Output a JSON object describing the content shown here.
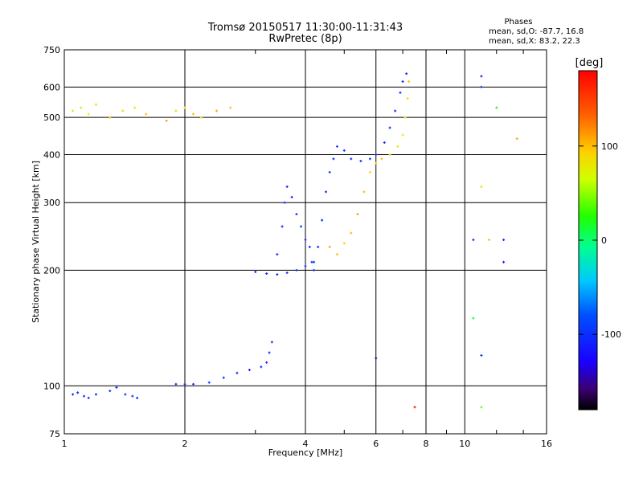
{
  "chart_data": {
    "type": "scatter",
    "title": "Tromsø 20150517 11:30:00-11:31:43",
    "subtitle": "RwPretec (8p)",
    "stats": {
      "heading": "Phases",
      "line1": "mean, sd,O: -87.7, 16.8",
      "line2": "mean, sd,X: 83.2, 22.3"
    },
    "xlabel": "Frequency [MHz]",
    "ylabel": "Stationary phase Virtual Height [km]",
    "xscale": "log",
    "yscale": "log",
    "xlim": [
      1,
      16
    ],
    "ylim": [
      75,
      750
    ],
    "xticks": [
      1,
      2,
      4,
      6,
      8,
      10,
      16
    ],
    "xtick_labels": [
      "1",
      "2",
      "4",
      "6",
      "8",
      "10",
      "16"
    ],
    "yticks": [
      75,
      100,
      200,
      300,
      400,
      500,
      600,
      750
    ],
    "ytick_labels": [
      "75",
      "100",
      "200",
      "300",
      "400",
      "500",
      "600",
      "750"
    ],
    "grid": true,
    "colorbar": {
      "label": "[deg]",
      "range": [
        -180,
        180
      ],
      "ticks": [
        -100,
        0,
        100
      ],
      "tick_labels": [
        "-100",
        "0",
        "100"
      ]
    },
    "series": [
      {
        "points": [
          [
            1.05,
            95,
            -100
          ],
          [
            1.08,
            96,
            -110
          ],
          [
            1.12,
            94,
            -95
          ],
          [
            1.15,
            93,
            -100
          ],
          [
            1.2,
            95,
            -105
          ],
          [
            1.3,
            97,
            -100
          ],
          [
            1.35,
            99,
            -110
          ],
          [
            1.42,
            95,
            -100
          ],
          [
            1.48,
            94,
            -90
          ],
          [
            1.52,
            93,
            -105
          ],
          [
            1.9,
            101,
            -100
          ],
          [
            2.0,
            101,
            -105
          ],
          [
            2.1,
            101,
            -100
          ],
          [
            2.3,
            102,
            -95
          ],
          [
            2.5,
            105,
            -100
          ],
          [
            2.7,
            108,
            -100
          ],
          [
            2.9,
            110,
            -110
          ],
          [
            3.1,
            112,
            -100
          ],
          [
            3.2,
            115,
            -105
          ],
          [
            3.25,
            122,
            -100
          ],
          [
            3.3,
            130,
            -95
          ]
        ]
      },
      {
        "points": [
          [
            3.0,
            198,
            -100
          ],
          [
            3.2,
            196,
            -105
          ],
          [
            3.4,
            195,
            -110
          ],
          [
            3.6,
            197,
            -100
          ],
          [
            3.8,
            200,
            -100
          ],
          [
            4.0,
            205,
            -95
          ],
          [
            4.2,
            210,
            -100
          ],
          [
            4.3,
            230,
            -105
          ],
          [
            4.4,
            270,
            -100
          ],
          [
            4.5,
            320,
            -100
          ],
          [
            4.6,
            360,
            -95
          ],
          [
            4.7,
            390,
            -105
          ],
          [
            4.8,
            420,
            -100
          ],
          [
            5.0,
            410,
            -100
          ],
          [
            5.2,
            390,
            -105
          ],
          [
            5.5,
            385,
            -100
          ],
          [
            5.8,
            390,
            -95
          ],
          [
            6.0,
            400,
            -100
          ],
          [
            6.3,
            430,
            -105
          ],
          [
            6.5,
            470,
            -100
          ],
          [
            6.7,
            520,
            -100
          ],
          [
            6.9,
            580,
            -95
          ],
          [
            7.0,
            620,
            -100
          ],
          [
            7.15,
            650,
            -100
          ]
        ]
      },
      {
        "points": [
          [
            3.4,
            220,
            -100
          ],
          [
            3.5,
            260,
            -105
          ],
          [
            3.55,
            300,
            -100
          ],
          [
            3.6,
            330,
            -110
          ],
          [
            3.7,
            310,
            -100
          ],
          [
            3.8,
            280,
            -100
          ],
          [
            3.9,
            260,
            -95
          ],
          [
            4.0,
            240,
            -100
          ],
          [
            4.1,
            230,
            -105
          ],
          [
            4.15,
            210,
            -100
          ],
          [
            4.2,
            200,
            -100
          ]
        ]
      },
      {
        "points": [
          [
            1.05,
            520,
            80
          ],
          [
            1.1,
            530,
            60
          ],
          [
            1.15,
            510,
            70
          ],
          [
            1.2,
            540,
            90
          ],
          [
            1.3,
            500,
            100
          ],
          [
            1.4,
            520,
            90
          ],
          [
            1.5,
            530,
            80
          ],
          [
            1.6,
            510,
            100
          ],
          [
            1.8,
            490,
            110
          ],
          [
            1.9,
            520,
            90
          ],
          [
            2.0,
            530,
            80
          ],
          [
            2.1,
            510,
            100
          ],
          [
            2.2,
            500,
            90
          ],
          [
            2.4,
            520,
            110
          ],
          [
            2.6,
            530,
            100
          ]
        ]
      },
      {
        "points": [
          [
            4.6,
            230,
            110
          ],
          [
            4.8,
            220,
            100
          ],
          [
            5.0,
            235,
            90
          ],
          [
            5.2,
            250,
            100
          ],
          [
            5.4,
            280,
            110
          ],
          [
            5.6,
            320,
            100
          ],
          [
            5.8,
            360,
            90
          ],
          [
            6.0,
            380,
            80
          ],
          [
            6.2,
            390,
            100
          ],
          [
            6.5,
            400,
            90
          ],
          [
            6.8,
            420,
            80
          ],
          [
            7.0,
            450,
            70
          ],
          [
            7.1,
            500,
            80
          ],
          [
            7.2,
            560,
            90
          ],
          [
            7.25,
            620,
            100
          ]
        ]
      },
      {
        "points": [
          [
            11.0,
            640,
            -110
          ],
          [
            11.0,
            600,
            -100
          ],
          [
            11.0,
            330,
            90
          ],
          [
            11.0,
            120,
            -100
          ],
          [
            12.5,
            240,
            -100
          ],
          [
            12.5,
            210,
            -110
          ],
          [
            10.5,
            240,
            -100
          ],
          [
            11.0,
            88,
            40
          ],
          [
            10.5,
            150,
            10
          ],
          [
            6.0,
            118,
            -150
          ],
          [
            7.5,
            88,
            170
          ],
          [
            13.5,
            440,
            110
          ],
          [
            12.0,
            530,
            20
          ],
          [
            11.5,
            240,
            100
          ]
        ]
      }
    ]
  }
}
